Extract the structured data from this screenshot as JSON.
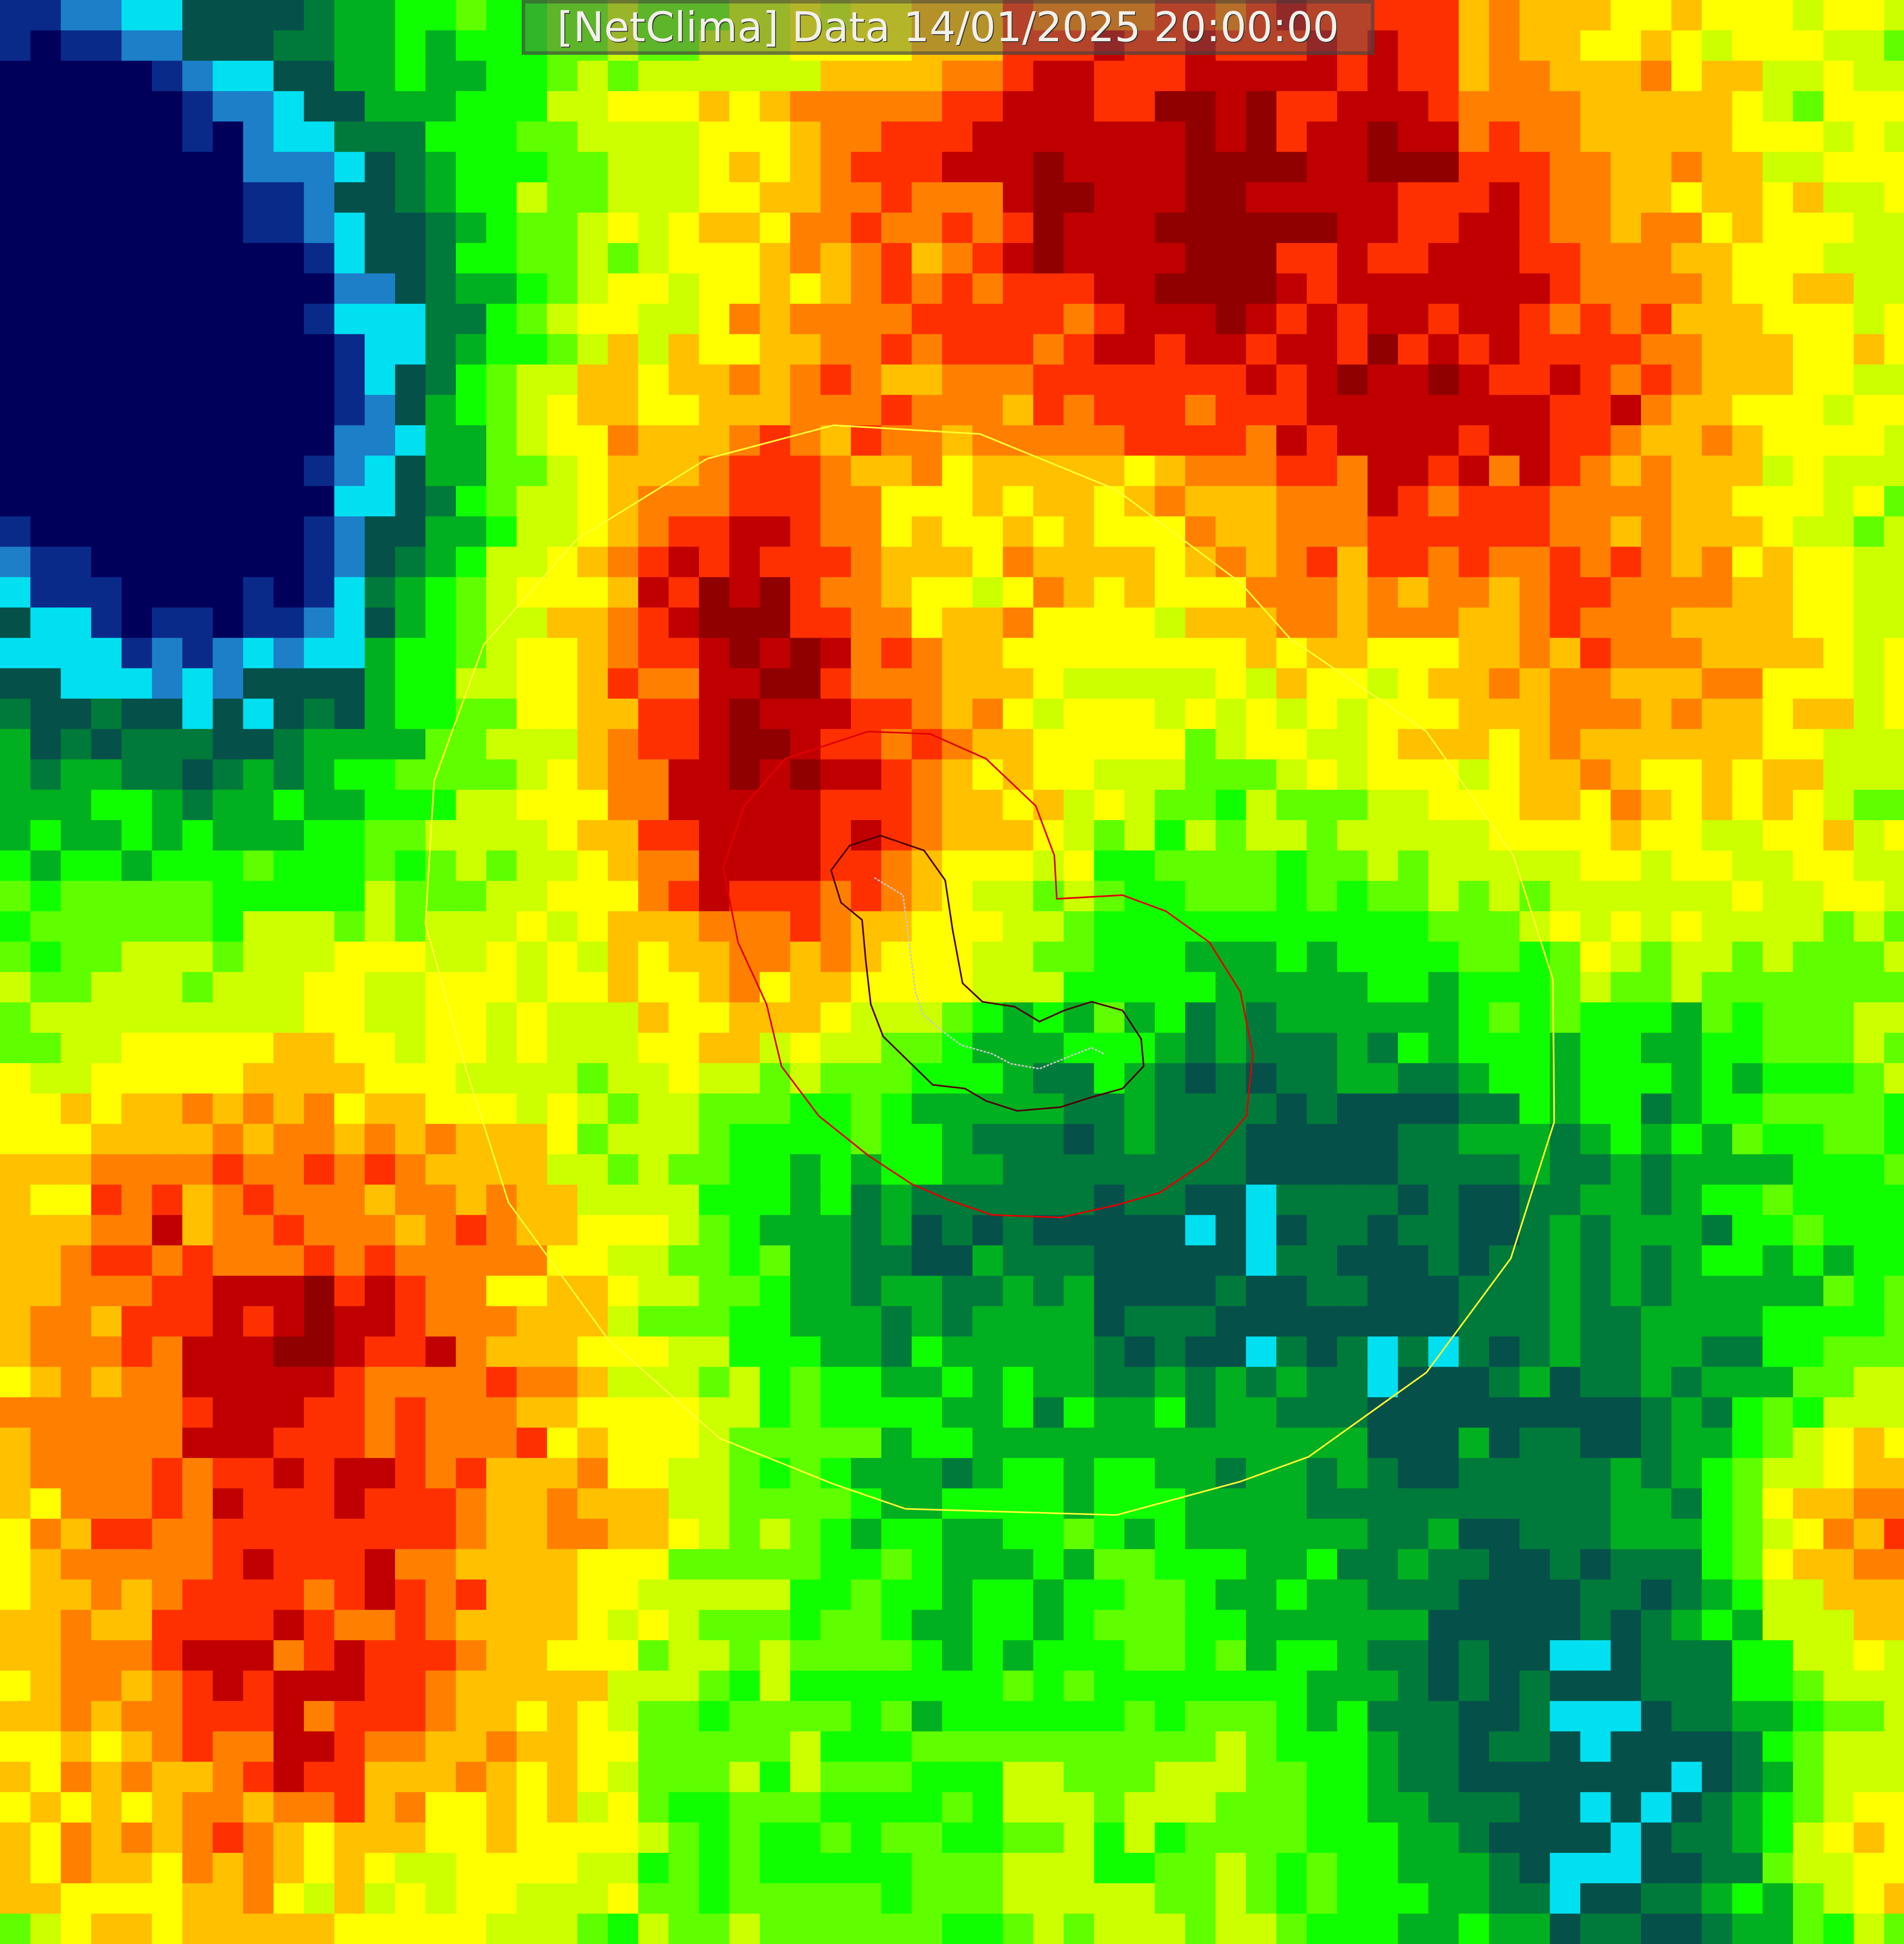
{
  "map": {
    "title": "[NetClima] Data 14/01/2025 20:00:00",
    "type": "raster-heatmap",
    "colormap": [
      "#00005a",
      "#0a2a8a",
      "#1c7fc8",
      "#00e0f0",
      "#06504a",
      "#007a3a",
      "#00b020",
      "#10ff00",
      "#60ff00",
      "#ccff00",
      "#ffff00",
      "#ffc000",
      "#ff8000",
      "#ff3000",
      "#c00000",
      "#900000"
    ],
    "contour_colors": {
      "outer": "#ffff33",
      "middle": "#e00000",
      "inner": "#500000",
      "track": "#c8c8c8"
    }
  }
}
